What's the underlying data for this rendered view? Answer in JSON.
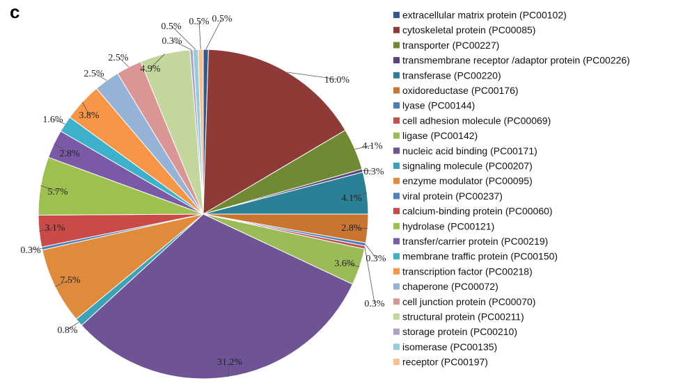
{
  "panel_label": "c",
  "chart_data": {
    "type": "pie",
    "title": "",
    "legend_position": "right",
    "slices": [
      {
        "label": "extracellular matrix protein (PC00102)",
        "value": 0.5,
        "display": "0.5%",
        "color": "#2E5C8E"
      },
      {
        "label": "cytoskeletal protein (PC00085)",
        "value": 16.0,
        "display": "16.0%",
        "color": "#8E3A36"
      },
      {
        "label": "transporter (PC00227)",
        "value": 4.1,
        "display": "4.1%",
        "color": "#6F8A32"
      },
      {
        "label": "transmembrane receptor /adaptor protein (PC00226)",
        "value": 0.3,
        "display": "0.3%",
        "color": "#5B4380"
      },
      {
        "label": "transferase (PC00220)",
        "value": 4.1,
        "display": "4.1%",
        "color": "#2B8096"
      },
      {
        "label": "oxidoreductase (PC00176)",
        "value": 2.8,
        "display": "2.8%",
        "color": "#C87532"
      },
      {
        "label": "lyase (PC00144)",
        "value": 0.3,
        "display": "0.3%",
        "color": "#4A7EBB"
      },
      {
        "label": "cell adhesion molecule (PC00069)",
        "value": 0.3,
        "display": "0.3%",
        "color": "#C0504D"
      },
      {
        "label": "ligase (PC00142)",
        "value": 3.6,
        "display": "3.6%",
        "color": "#9BBB59"
      },
      {
        "label": "nucleic acid binding (PC00171)",
        "value": 31.2,
        "display": "31.2%",
        "color": "#6E5494"
      },
      {
        "label": "signaling molecule (PC00207)",
        "value": 0.8,
        "display": "0.8%",
        "color": "#3CA2B8"
      },
      {
        "label": "enzyme modulator (PC00095)",
        "value": 7.5,
        "display": "7.5%",
        "color": "#E08A3C"
      },
      {
        "label": "viral protein (PC00237)",
        "value": 0.3,
        "display": "0.3%",
        "color": "#4F81BD"
      },
      {
        "label": "calcium-binding protein (PC00060)",
        "value": 3.1,
        "display": "3.1%",
        "color": "#C94A47"
      },
      {
        "label": "hydrolase (PC00121)",
        "value": 5.7,
        "display": "5.7%",
        "color": "#9DC04E"
      },
      {
        "label": "transfer/carrier protein (PC00219)",
        "value": 2.8,
        "display": "2.8%",
        "color": "#7A5AA6"
      },
      {
        "label": "membrane traffic protein (PC00150)",
        "value": 1.6,
        "display": "1.6%",
        "color": "#3DB1C9"
      },
      {
        "label": "transcription factor (PC00218)",
        "value": 3.8,
        "display": "3.8%",
        "color": "#F79646"
      },
      {
        "label": "chaperone (PC00072)",
        "value": 2.5,
        "display": "2.5%",
        "color": "#95B3D7"
      },
      {
        "label": "cell junction protein (PC00070)",
        "value": 2.5,
        "display": "2.5%",
        "color": "#D99694"
      },
      {
        "label": "structural protein (PC00211)",
        "value": 4.9,
        "display": "4.9%",
        "color": "#C3D69B"
      },
      {
        "label": "storage protein (PC00210)",
        "value": 0.3,
        "display": "0.3%",
        "color": "#B2A1C7"
      },
      {
        "label": "isomerase (PC00135)",
        "value": 0.5,
        "display": "0.5%",
        "color": "#93CDDD"
      },
      {
        "label": "receptor (PC00197)",
        "value": 0.5,
        "display": "0.5%",
        "color": "#FAC090"
      }
    ]
  }
}
